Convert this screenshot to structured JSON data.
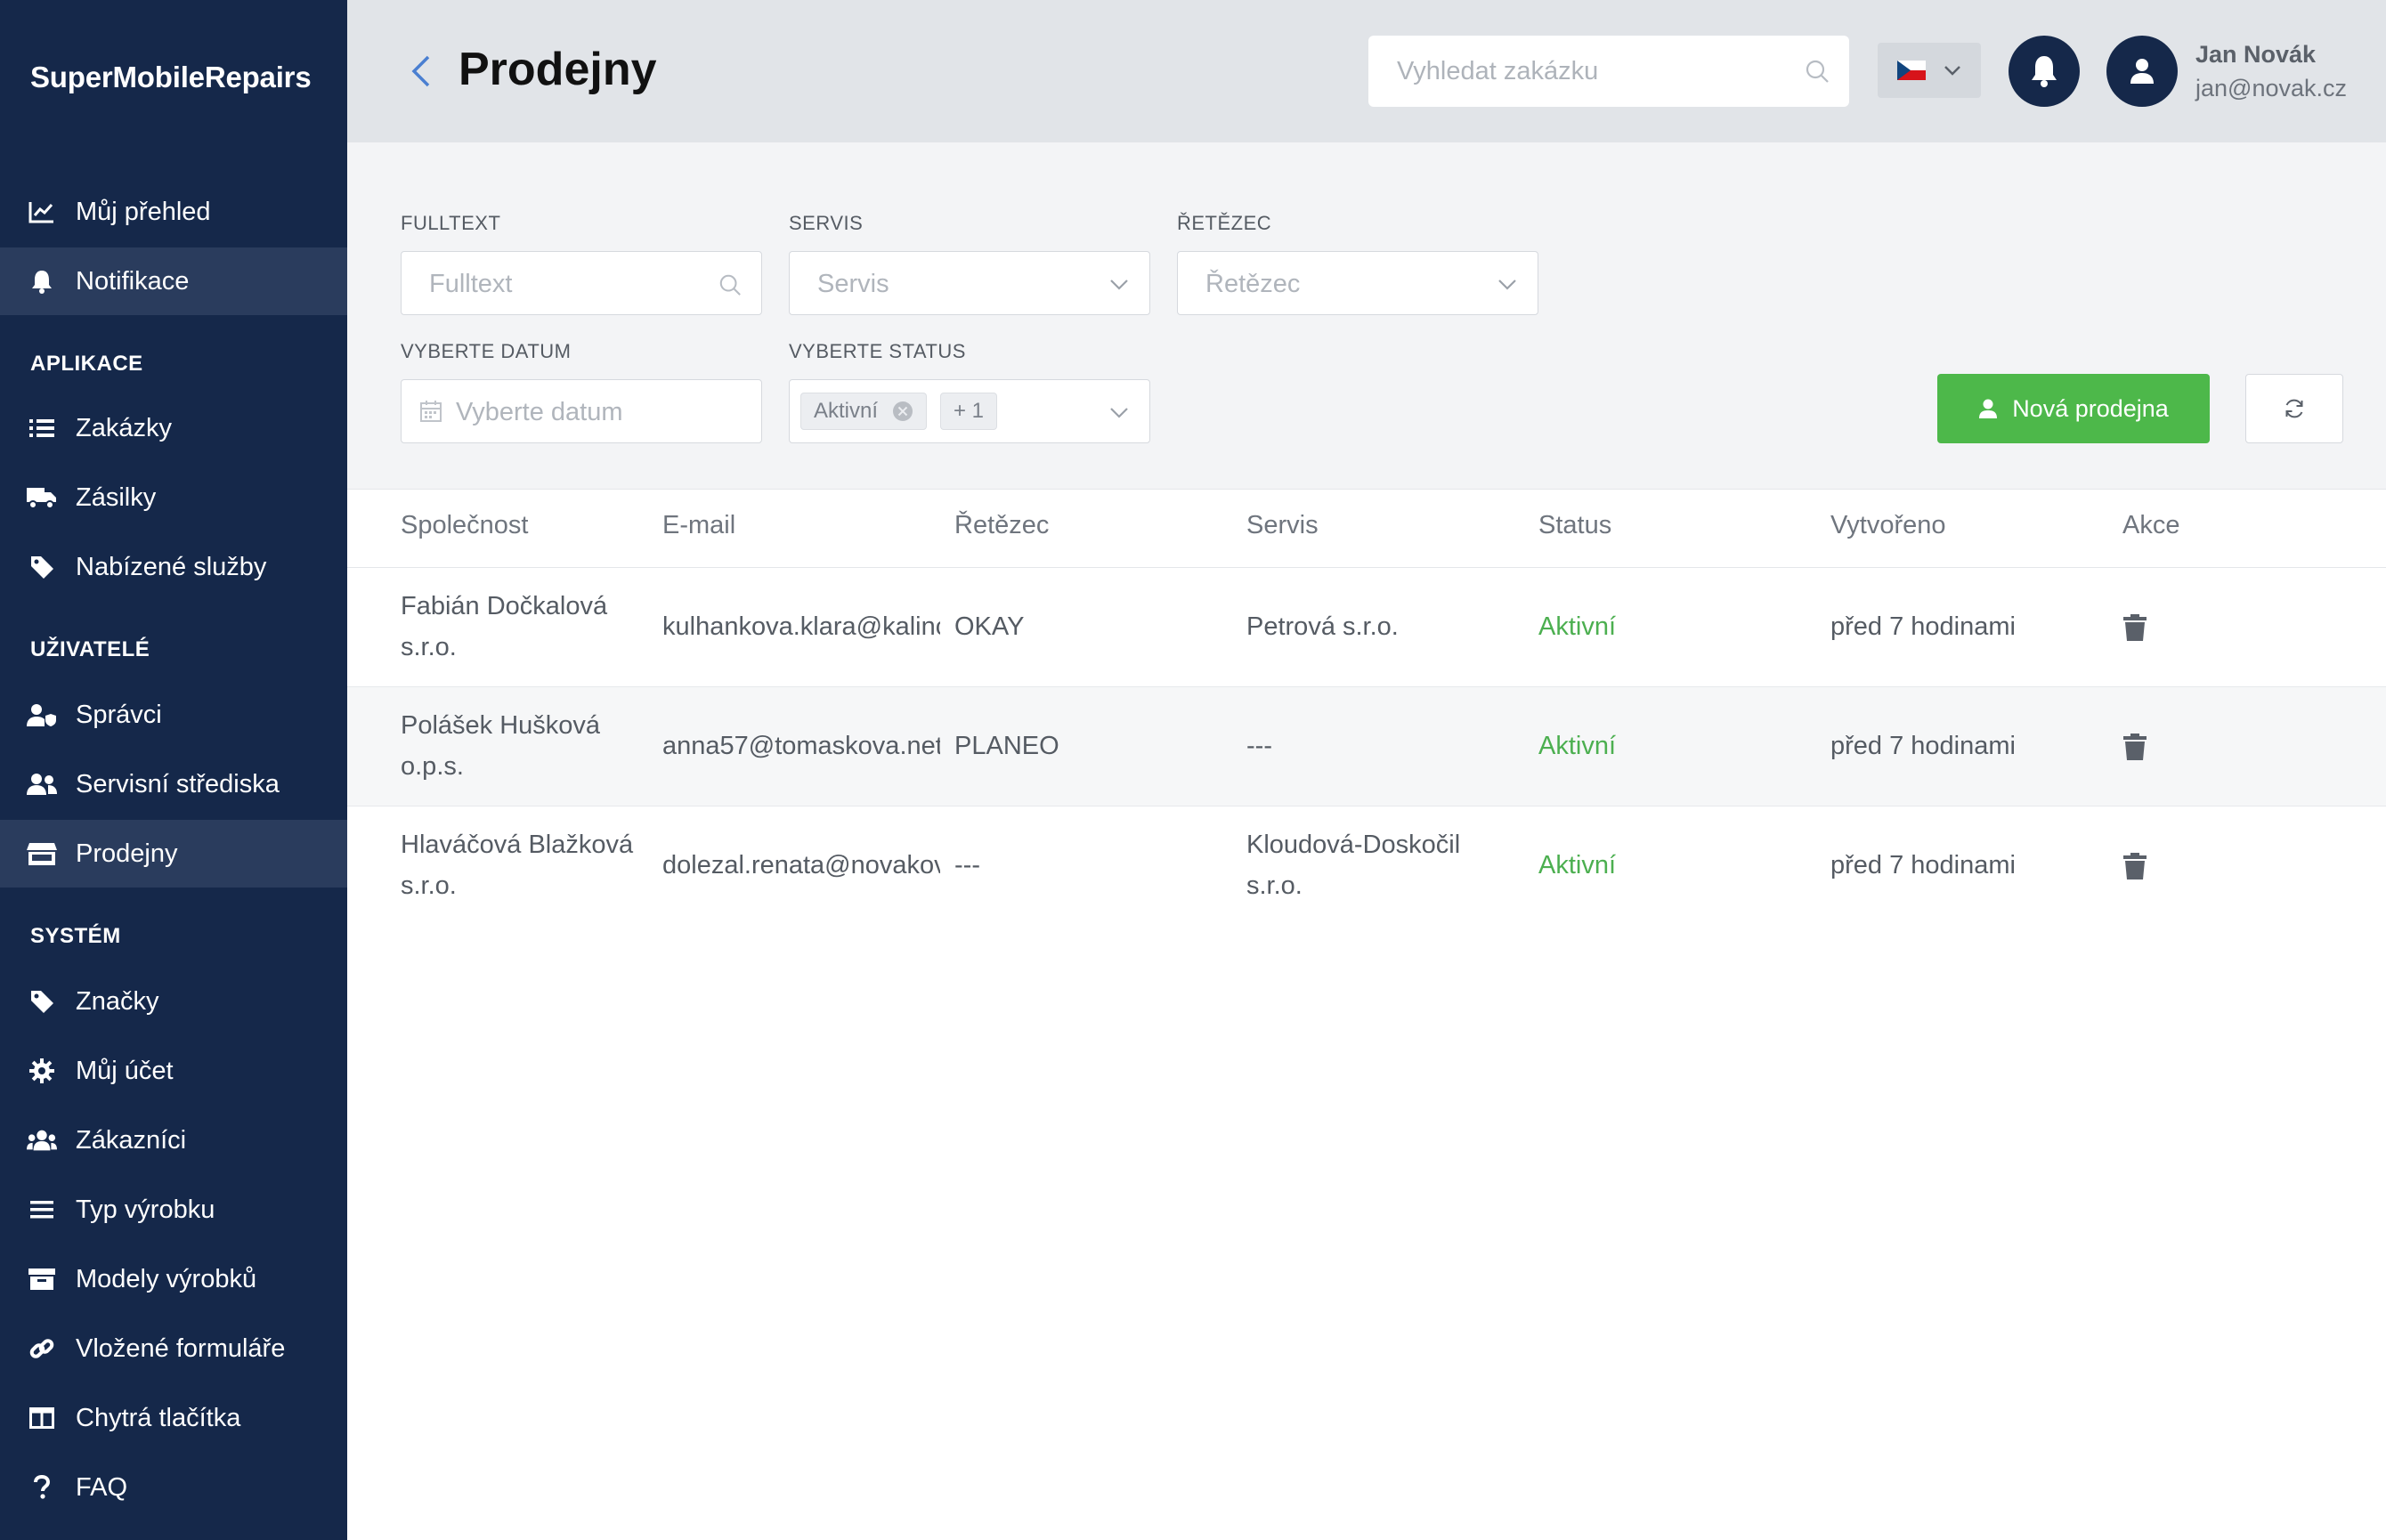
{
  "app": {
    "brand": "SuperMobileRepairs"
  },
  "sidebar": {
    "top_items": [
      {
        "label": "Můj přehled",
        "icon": "chart-line-icon"
      },
      {
        "label": "Notifikace",
        "icon": "bell-icon"
      }
    ],
    "sections": [
      {
        "title": "APLIKACE",
        "items": [
          {
            "label": "Zakázky",
            "icon": "list-icon"
          },
          {
            "label": "Zásilky",
            "icon": "truck-icon"
          },
          {
            "label": "Nabízené služby",
            "icon": "tag-icon"
          }
        ]
      },
      {
        "title": "UŽIVATELÉ",
        "items": [
          {
            "label": "Správci",
            "icon": "user-shield-icon"
          },
          {
            "label": "Servisní střediska",
            "icon": "users-icon"
          },
          {
            "label": "Prodejny",
            "icon": "store-icon"
          }
        ]
      },
      {
        "title": "SYSTÉM",
        "items": [
          {
            "label": "Značky",
            "icon": "tag-icon"
          },
          {
            "label": "Můj účet",
            "icon": "gear-icon"
          },
          {
            "label": "Zákazníci",
            "icon": "users-group-icon"
          },
          {
            "label": "Typ výrobku",
            "icon": "bars-icon"
          },
          {
            "label": "Modely výrobků",
            "icon": "archive-icon"
          },
          {
            "label": "Vložené formuláře",
            "icon": "link-icon"
          },
          {
            "label": "Chytrá tlačítka",
            "icon": "columns-icon"
          },
          {
            "label": "FAQ",
            "icon": "question-icon"
          }
        ]
      }
    ]
  },
  "header": {
    "title": "Prodejny",
    "search_placeholder": "Vyhledat zakázku",
    "user_name": "Jan Novák",
    "user_email": "jan@novak.cz"
  },
  "filters": {
    "fulltext_label": "FULLTEXT",
    "fulltext_placeholder": "Fulltext",
    "servis_label": "SERVIS",
    "servis_placeholder": "Servis",
    "retezec_label": "ŘETĚZEC",
    "retezec_placeholder": "Řetězec",
    "datum_label": "VYBERTE DATUM",
    "datum_placeholder": "Vyberte datum",
    "status_label": "VYBERTE STATUS",
    "status_chip": "Aktivní",
    "status_more": "+ 1",
    "new_button": "Nová prodejna"
  },
  "table": {
    "columns": [
      "Společnost",
      "E-mail",
      "Řetězec",
      "Servis",
      "Status",
      "Vytvořeno",
      "Akce"
    ],
    "rows": [
      {
        "company": "Fabián Dočkalová s.r.o.",
        "email": "kulhankova.klara@kalinc",
        "chain": "OKAY",
        "service": "Petrová s.r.o.",
        "status": "Aktivní",
        "created": "před 7 hodinami"
      },
      {
        "company": "Polášek Hušková o.p.s.",
        "email": "anna57@tomaskova.net",
        "chain": "PLANEO",
        "service": "---",
        "status": "Aktivní",
        "created": "před 7 hodinami"
      },
      {
        "company": "Hlaváčová Blažková s.r.o.",
        "email": "dolezal.renata@novakov",
        "chain": "---",
        "service": "Kloudová-Doskočil s.r.o.",
        "status": "Aktivní",
        "created": "před 7 hodinami"
      }
    ]
  },
  "colors": {
    "sidebar": "#15284a",
    "accent_green": "#4db84a",
    "status_green": "#4caf50"
  }
}
